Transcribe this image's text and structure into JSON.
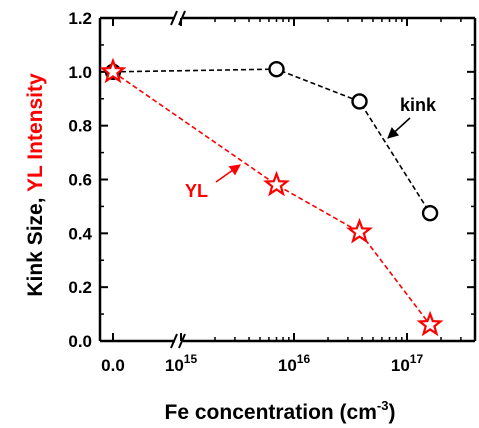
{
  "chart_data": {
    "type": "scatter",
    "y_axis": {
      "label_parts": [
        {
          "text": "Kink Size, ",
          "color": "#000000"
        },
        {
          "text": "YL Intensity",
          "color": "#ff0000"
        }
      ],
      "range": [
        0.0,
        1.2
      ],
      "ticks": [
        "0.0",
        "0.2",
        "0.4",
        "0.6",
        "0.8",
        "1.0",
        "1.2"
      ]
    },
    "x_axis": {
      "label_base": "Fe concentration (cm",
      "label_sup": "-3",
      "label_end": ")",
      "scale": "broken: linear zero segment, then log10",
      "ticks": [
        {
          "base": "0.0",
          "exp": ""
        },
        {
          "base": "10",
          "exp": "15"
        },
        {
          "base": "10",
          "exp": "16"
        },
        {
          "base": "10",
          "exp": "17"
        }
      ],
      "log_range": [
        14.62,
        17.5
      ]
    },
    "series": [
      {
        "name": "kink",
        "marker": "circle",
        "color": "#000000",
        "line": "dashed",
        "points": [
          {
            "x": 0,
            "y": 1.0
          },
          {
            "x": 7000000000000000.0,
            "y": 1.01
          },
          {
            "x": 3.8e+16,
            "y": 0.89
          },
          {
            "x": 1.6e+17,
            "y": 0.475
          }
        ]
      },
      {
        "name": "YL",
        "marker": "star",
        "color": "#ff0000",
        "line": "dashed",
        "points": [
          {
            "x": 0,
            "y": 1.0
          },
          {
            "x": 7000000000000000.0,
            "y": 0.58
          },
          {
            "x": 3.8e+16,
            "y": 0.405
          },
          {
            "x": 1.6e+17,
            "y": 0.06
          }
        ]
      }
    ],
    "annotations": [
      {
        "text": "kink",
        "color": "#000000",
        "points_to_series": "kink"
      },
      {
        "text": "YL",
        "color": "#ff0000",
        "points_to_series": "YL"
      }
    ],
    "grid": false,
    "legend": "none"
  }
}
